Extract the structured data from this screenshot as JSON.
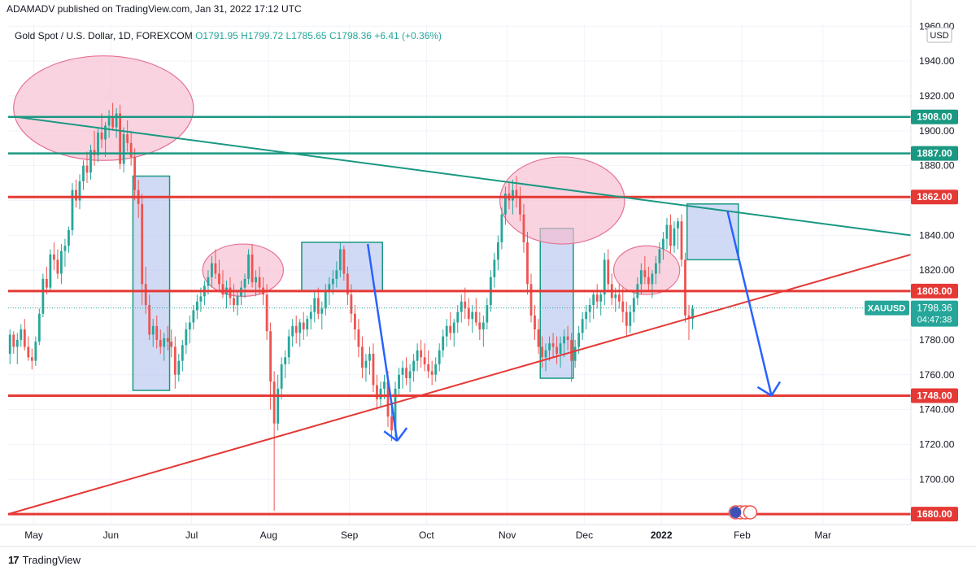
{
  "header": {
    "published": "ADAMADV published on TradingView.com, Jan 31, 2022 17:12 UTC"
  },
  "legend": {
    "symbol": "Gold Spot / U.S. Dollar, 1D, FOREXCOM",
    "open": "O1791.95",
    "high": "H1799.72",
    "low": "L1785.65",
    "close": "C1798.36",
    "change": "+6.41 (+0.36%)"
  },
  "footer": {
    "brand": "TradingView"
  },
  "colors": {
    "up": "#26a69a",
    "down": "#ef5350",
    "teal": "#1a9882",
    "red": "#e53935",
    "blue_arrow": "#2962ff",
    "box_fill": "#b3c1ee",
    "ellipse_fill": "#f8bbd0"
  },
  "chart_data": {
    "type": "candlestick",
    "symbol": "XAUUSD",
    "currency": "USD",
    "ylim": [
      1674,
      1962
    ],
    "y_ticks": [
      1680,
      1700,
      1720,
      1740,
      1760,
      1780,
      1800,
      1820,
      1840,
      1860,
      1880,
      1900,
      1920,
      1940,
      1960
    ],
    "x_labels": [
      {
        "label": "May",
        "bar": 7
      },
      {
        "label": "Jun",
        "bar": 28
      },
      {
        "label": "Jul",
        "bar": 50
      },
      {
        "label": "Aug",
        "bar": 71
      },
      {
        "label": "Sep",
        "bar": 93
      },
      {
        "label": "Oct",
        "bar": 114
      },
      {
        "label": "Nov",
        "bar": 136
      },
      {
        "label": "Dec",
        "bar": 157
      },
      {
        "label": "2022",
        "bar": 178,
        "bold": true
      },
      {
        "label": "Feb",
        "bar": 200
      },
      {
        "label": "Mar",
        "bar": 222
      }
    ],
    "bar_range": [
      0,
      246
    ],
    "current_price": {
      "label": "XAUUSD",
      "value": "1798.36",
      "countdown": "04:47:38"
    },
    "horizontal_levels": [
      {
        "value": 1908,
        "label": "1908.00",
        "color": "teal"
      },
      {
        "value": 1887,
        "label": "1887.00",
        "color": "teal"
      },
      {
        "value": 1862,
        "label": "1862.00",
        "color": "red"
      },
      {
        "value": 1808,
        "label": "1808.00",
        "color": "red"
      },
      {
        "value": 1748,
        "label": "1748.00",
        "color": "red"
      },
      {
        "value": 1680,
        "label": "1680.00",
        "color": "red"
      }
    ],
    "trend_lines": [
      {
        "name": "resistance",
        "color": "teal",
        "from": [
          2,
          1908
        ],
        "to": [
          246,
          1840
        ]
      },
      {
        "name": "support",
        "color": "red",
        "from": [
          0,
          1680
        ],
        "to": [
          246,
          1829
        ]
      }
    ],
    "rectangles": [
      {
        "from_bar": 34,
        "to_bar": 44,
        "top": 1874,
        "bottom": 1751
      },
      {
        "from_bar": 80,
        "to_bar": 102,
        "top": 1836,
        "bottom": 1808
      },
      {
        "from_bar": 145,
        "to_bar": 154,
        "top": 1844,
        "bottom": 1758
      },
      {
        "from_bar": 185,
        "to_bar": 199,
        "top": 1858,
        "bottom": 1826
      }
    ],
    "ellipses": [
      {
        "center_bar": 26,
        "center_value": 1913,
        "radius_bars": 24.5,
        "radius_value": 30
      },
      {
        "center_bar": 64,
        "center_value": 1820,
        "radius_bars": 11,
        "radius_value": 15
      },
      {
        "center_bar": 151,
        "center_value": 1860,
        "radius_bars": 17,
        "radius_value": 25
      },
      {
        "center_bar": 174,
        "center_value": 1820,
        "radius_bars": 9,
        "radius_value": 14
      }
    ],
    "arrows": [
      {
        "from": [
          98,
          1835
        ],
        "to": [
          106,
          1722
        ],
        "head": true
      },
      {
        "from": [
          196,
          1854
        ],
        "to": [
          208,
          1748
        ],
        "head": true
      }
    ],
    "candles": [
      [
        1772,
        1786,
        1766,
        1783
      ],
      [
        1783,
        1785,
        1772,
        1776
      ],
      [
        1776,
        1784,
        1766,
        1780
      ],
      [
        1780,
        1789,
        1776,
        1786
      ],
      [
        1786,
        1792,
        1774,
        1776
      ],
      [
        1776,
        1782,
        1768,
        1770
      ],
      [
        1770,
        1775,
        1763,
        1768
      ],
      [
        1768,
        1782,
        1765,
        1779
      ],
      [
        1779,
        1798,
        1777,
        1795
      ],
      [
        1795,
        1818,
        1793,
        1815
      ],
      [
        1815,
        1822,
        1806,
        1810
      ],
      [
        1810,
        1832,
        1808,
        1829
      ],
      [
        1829,
        1836,
        1820,
        1826
      ],
      [
        1826,
        1832,
        1815,
        1818
      ],
      [
        1818,
        1835,
        1812,
        1831
      ],
      [
        1831,
        1838,
        1822,
        1834
      ],
      [
        1834,
        1845,
        1830,
        1843
      ],
      [
        1843,
        1870,
        1840,
        1866
      ],
      [
        1866,
        1872,
        1856,
        1860
      ],
      [
        1860,
        1875,
        1855,
        1871
      ],
      [
        1871,
        1883,
        1866,
        1880
      ],
      [
        1880,
        1888,
        1870,
        1876
      ],
      [
        1876,
        1892,
        1872,
        1889
      ],
      [
        1889,
        1900,
        1880,
        1886
      ],
      [
        1886,
        1902,
        1882,
        1899
      ],
      [
        1899,
        1910,
        1890,
        1895
      ],
      [
        1895,
        1905,
        1885,
        1903
      ],
      [
        1903,
        1912,
        1896,
        1908
      ],
      [
        1908,
        1916,
        1900,
        1902
      ],
      [
        1902,
        1913,
        1896,
        1910
      ],
      [
        1910,
        1915,
        1878,
        1881
      ],
      [
        1881,
        1902,
        1876,
        1898
      ],
      [
        1898,
        1906,
        1888,
        1893
      ],
      [
        1893,
        1900,
        1880,
        1885
      ],
      [
        1885,
        1890,
        1860,
        1866
      ],
      [
        1866,
        1872,
        1850,
        1858
      ],
      [
        1858,
        1864,
        1800,
        1812
      ],
      [
        1812,
        1822,
        1795,
        1800
      ],
      [
        1800,
        1806,
        1780,
        1783
      ],
      [
        1783,
        1792,
        1776,
        1788
      ],
      [
        1788,
        1794,
        1775,
        1780
      ],
      [
        1780,
        1786,
        1772,
        1776
      ],
      [
        1776,
        1784,
        1768,
        1781
      ],
      [
        1781,
        1788,
        1774,
        1779
      ],
      [
        1779,
        1786,
        1770,
        1776
      ],
      [
        1776,
        1782,
        1752,
        1760
      ],
      [
        1760,
        1772,
        1756,
        1768
      ],
      [
        1768,
        1780,
        1762,
        1777
      ],
      [
        1777,
        1790,
        1772,
        1786
      ],
      [
        1786,
        1794,
        1778,
        1790
      ],
      [
        1790,
        1800,
        1786,
        1797
      ],
      [
        1797,
        1806,
        1792,
        1802
      ],
      [
        1802,
        1810,
        1796,
        1805
      ],
      [
        1805,
        1814,
        1800,
        1811
      ],
      [
        1811,
        1820,
        1806,
        1816
      ],
      [
        1816,
        1828,
        1810,
        1824
      ],
      [
        1824,
        1832,
        1815,
        1818
      ],
      [
        1818,
        1826,
        1808,
        1812
      ],
      [
        1812,
        1820,
        1804,
        1806
      ],
      [
        1806,
        1814,
        1798,
        1810
      ],
      [
        1810,
        1816,
        1800,
        1804
      ],
      [
        1804,
        1812,
        1796,
        1800
      ],
      [
        1800,
        1808,
        1794,
        1805
      ],
      [
        1805,
        1814,
        1800,
        1810
      ],
      [
        1810,
        1818,
        1804,
        1815
      ],
      [
        1815,
        1832,
        1812,
        1829
      ],
      [
        1829,
        1835,
        1810,
        1813
      ],
      [
        1813,
        1820,
        1805,
        1816
      ],
      [
        1816,
        1822,
        1806,
        1810
      ],
      [
        1810,
        1816,
        1800,
        1806
      ],
      [
        1806,
        1812,
        1780,
        1785
      ],
      [
        1785,
        1790,
        1740,
        1756
      ],
      [
        1756,
        1762,
        1682,
        1732
      ],
      [
        1732,
        1760,
        1728,
        1752
      ],
      [
        1752,
        1770,
        1746,
        1766
      ],
      [
        1766,
        1774,
        1758,
        1770
      ],
      [
        1770,
        1786,
        1766,
        1782
      ],
      [
        1782,
        1792,
        1776,
        1788
      ],
      [
        1788,
        1794,
        1778,
        1784
      ],
      [
        1784,
        1792,
        1776,
        1790
      ],
      [
        1790,
        1796,
        1780,
        1786
      ],
      [
        1786,
        1794,
        1782,
        1792
      ],
      [
        1792,
        1800,
        1786,
        1796
      ],
      [
        1796,
        1808,
        1790,
        1804
      ],
      [
        1804,
        1810,
        1792,
        1795
      ],
      [
        1795,
        1802,
        1786,
        1798
      ],
      [
        1798,
        1812,
        1794,
        1808
      ],
      [
        1808,
        1816,
        1800,
        1812
      ],
      [
        1812,
        1820,
        1806,
        1815
      ],
      [
        1815,
        1825,
        1810,
        1820
      ],
      [
        1820,
        1836,
        1816,
        1832
      ],
      [
        1832,
        1834,
        1814,
        1818
      ],
      [
        1818,
        1822,
        1800,
        1806
      ],
      [
        1806,
        1812,
        1790,
        1795
      ],
      [
        1795,
        1800,
        1780,
        1786
      ],
      [
        1786,
        1792,
        1770,
        1776
      ],
      [
        1776,
        1782,
        1758,
        1764
      ],
      [
        1764,
        1772,
        1756,
        1768
      ],
      [
        1768,
        1776,
        1760,
        1772
      ],
      [
        1772,
        1778,
        1750,
        1754
      ],
      [
        1754,
        1760,
        1740,
        1746
      ],
      [
        1746,
        1756,
        1742,
        1752
      ],
      [
        1752,
        1760,
        1746,
        1756
      ],
      [
        1756,
        1762,
        1730,
        1736
      ],
      [
        1736,
        1744,
        1722,
        1728
      ],
      [
        1728,
        1756,
        1724,
        1752
      ],
      [
        1752,
        1764,
        1748,
        1760
      ],
      [
        1760,
        1768,
        1752,
        1764
      ],
      [
        1764,
        1770,
        1754,
        1758
      ],
      [
        1758,
        1766,
        1750,
        1762
      ],
      [
        1762,
        1772,
        1756,
        1768
      ],
      [
        1768,
        1778,
        1762,
        1774
      ],
      [
        1774,
        1780,
        1764,
        1770
      ],
      [
        1770,
        1778,
        1762,
        1766
      ],
      [
        1766,
        1774,
        1758,
        1762
      ],
      [
        1762,
        1768,
        1754,
        1760
      ],
      [
        1760,
        1770,
        1756,
        1766
      ],
      [
        1766,
        1778,
        1762,
        1774
      ],
      [
        1774,
        1786,
        1770,
        1782
      ],
      [
        1782,
        1792,
        1776,
        1788
      ],
      [
        1788,
        1796,
        1780,
        1784
      ],
      [
        1784,
        1792,
        1776,
        1790
      ],
      [
        1790,
        1800,
        1784,
        1796
      ],
      [
        1796,
        1806,
        1790,
        1802
      ],
      [
        1802,
        1810,
        1792,
        1798
      ],
      [
        1798,
        1804,
        1788,
        1792
      ],
      [
        1792,
        1800,
        1784,
        1796
      ],
      [
        1796,
        1804,
        1788,
        1790
      ],
      [
        1790,
        1796,
        1780,
        1786
      ],
      [
        1786,
        1794,
        1776,
        1790
      ],
      [
        1790,
        1804,
        1786,
        1800
      ],
      [
        1800,
        1820,
        1796,
        1816
      ],
      [
        1816,
        1830,
        1810,
        1826
      ],
      [
        1826,
        1840,
        1820,
        1836
      ],
      [
        1836,
        1856,
        1832,
        1852
      ],
      [
        1852,
        1868,
        1846,
        1864
      ],
      [
        1864,
        1870,
        1855,
        1860
      ],
      [
        1860,
        1872,
        1852,
        1866
      ],
      [
        1866,
        1874,
        1856,
        1862
      ],
      [
        1862,
        1868,
        1848,
        1852
      ],
      [
        1852,
        1858,
        1830,
        1836
      ],
      [
        1836,
        1842,
        1806,
        1812
      ],
      [
        1812,
        1818,
        1790,
        1794
      ],
      [
        1794,
        1800,
        1780,
        1786
      ],
      [
        1786,
        1792,
        1772,
        1776
      ],
      [
        1776,
        1782,
        1764,
        1770
      ],
      [
        1770,
        1778,
        1762,
        1774
      ],
      [
        1774,
        1782,
        1768,
        1778
      ],
      [
        1778,
        1784,
        1770,
        1776
      ],
      [
        1776,
        1782,
        1766,
        1772
      ],
      [
        1772,
        1782,
        1764,
        1778
      ],
      [
        1778,
        1786,
        1770,
        1782
      ],
      [
        1782,
        1788,
        1774,
        1780
      ],
      [
        1780,
        1784,
        1756,
        1768
      ],
      [
        1768,
        1780,
        1764,
        1776
      ],
      [
        1776,
        1788,
        1772,
        1784
      ],
      [
        1784,
        1796,
        1780,
        1792
      ],
      [
        1792,
        1800,
        1786,
        1796
      ],
      [
        1796,
        1804,
        1790,
        1800
      ],
      [
        1800,
        1808,
        1792,
        1806
      ],
      [
        1806,
        1812,
        1798,
        1802
      ],
      [
        1802,
        1808,
        1794,
        1806
      ],
      [
        1806,
        1830,
        1800,
        1826
      ],
      [
        1826,
        1832,
        1808,
        1812
      ],
      [
        1812,
        1818,
        1800,
        1804
      ],
      [
        1804,
        1810,
        1796,
        1806
      ],
      [
        1806,
        1812,
        1798,
        1802
      ],
      [
        1802,
        1810,
        1790,
        1796
      ],
      [
        1796,
        1802,
        1782,
        1788
      ],
      [
        1788,
        1800,
        1784,
        1796
      ],
      [
        1796,
        1808,
        1790,
        1804
      ],
      [
        1804,
        1816,
        1800,
        1812
      ],
      [
        1812,
        1824,
        1806,
        1820
      ],
      [
        1820,
        1828,
        1812,
        1816
      ],
      [
        1816,
        1822,
        1808,
        1812
      ],
      [
        1812,
        1820,
        1804,
        1818
      ],
      [
        1818,
        1828,
        1812,
        1824
      ],
      [
        1824,
        1836,
        1818,
        1832
      ],
      [
        1832,
        1842,
        1826,
        1838
      ],
      [
        1838,
        1850,
        1832,
        1846
      ],
      [
        1846,
        1852,
        1830,
        1834
      ],
      [
        1834,
        1848,
        1830,
        1844
      ],
      [
        1844,
        1850,
        1832,
        1848
      ],
      [
        1848,
        1852,
        1822,
        1826
      ],
      [
        1826,
        1830,
        1790,
        1794
      ],
      [
        1794,
        1800,
        1780,
        1792
      ],
      [
        1792,
        1800,
        1786,
        1798
      ]
    ],
    "candle_offset": 0
  }
}
